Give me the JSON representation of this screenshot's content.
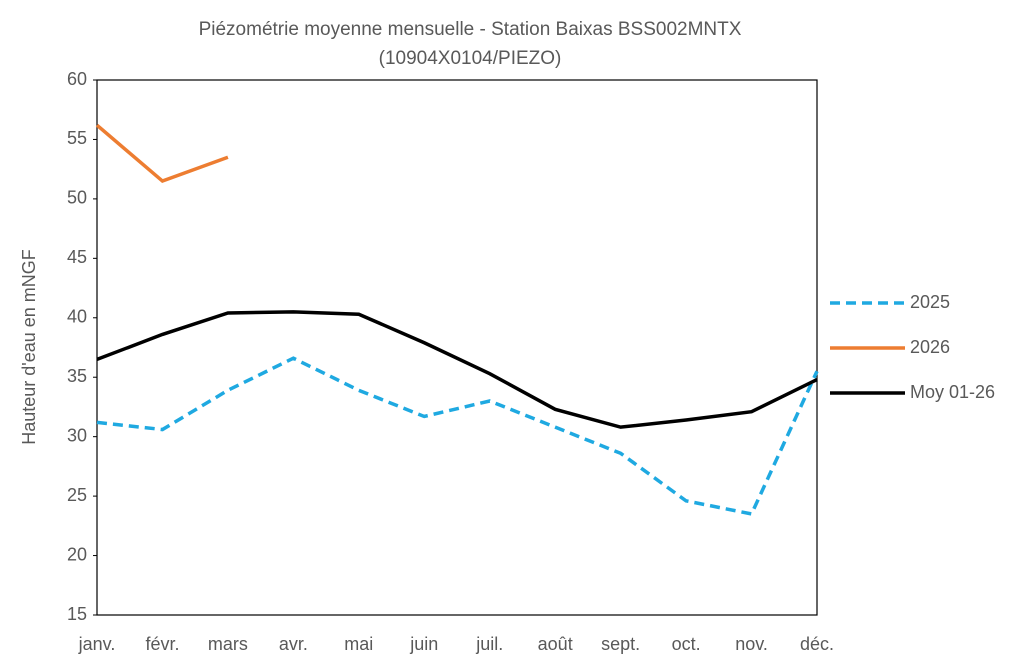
{
  "chart_data": {
    "type": "line",
    "title": [
      "Piézométrie moyenne mensuelle - Station Baixas BSS002MNTX",
      "(10904X0104/PIEZO)"
    ],
    "y_label": "Hauteur d'eau en mNGF",
    "categories": [
      "janv.",
      "févr.",
      "mars",
      "avr.",
      "mai",
      "juin",
      "juil.",
      "août",
      "sept.",
      "oct.",
      "nov.",
      "déc."
    ],
    "series": [
      {
        "name": "2025",
        "color": "#1fa9e1",
        "dashed": true,
        "values": [
          31.2,
          30.6,
          33.9,
          36.6,
          33.9,
          31.7,
          33.0,
          30.8,
          28.6,
          24.6,
          23.5,
          35.5
        ]
      },
      {
        "name": "2026",
        "color": "#ed7d31",
        "dashed": false,
        "values": [
          56.2,
          51.5,
          53.5,
          null,
          null,
          null,
          null,
          null,
          null,
          null,
          null,
          null
        ]
      },
      {
        "name": "Moy 01-26",
        "color": "#000000",
        "dashed": false,
        "values": [
          36.5,
          38.6,
          40.4,
          40.5,
          40.3,
          37.9,
          35.3,
          32.3,
          30.8,
          31.4,
          32.1,
          34.8
        ]
      }
    ],
    "ylim": [
      15,
      60
    ],
    "yticks": [
      15,
      20,
      25,
      30,
      35,
      40,
      45,
      50,
      55,
      60
    ],
    "grid": false,
    "legend": "right"
  }
}
